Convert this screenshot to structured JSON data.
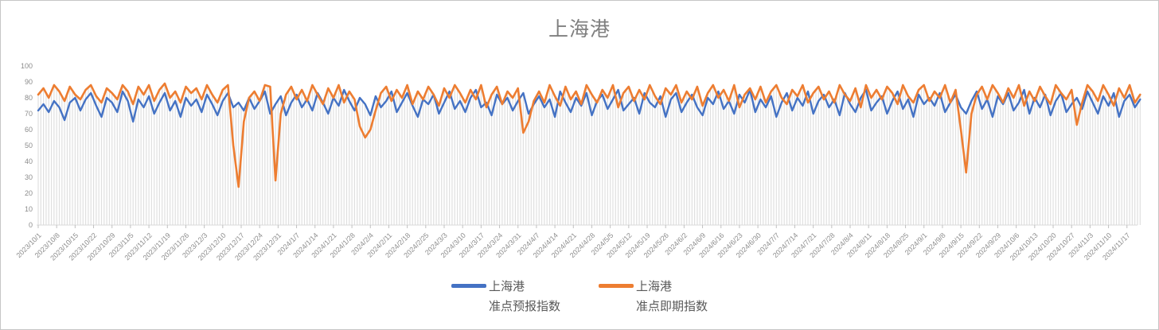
{
  "window": {
    "background": "#ffffff",
    "border_color": "#c6c6c6"
  },
  "chart_data": {
    "type": "line",
    "title": "上海港",
    "legend_position": "bottom",
    "x_axis": {
      "start_date": "2023/10/1",
      "sample_interval_days": 2,
      "label_rotation_deg": 45,
      "tick_labels": [
        "2023/10/1",
        "2023/10/8",
        "2023/10/15",
        "2023/10/22",
        "2023/10/29",
        "2023/11/5",
        "2023/11/12",
        "2023/11/19",
        "2023/11/26",
        "2023/12/3",
        "2023/12/10",
        "2023/12/17",
        "2023/12/24",
        "2023/12/31",
        "2024/1/7",
        "2024/1/14",
        "2024/1/21",
        "2024/1/28",
        "2024/2/4",
        "2024/2/11",
        "2024/2/18",
        "2024/2/25",
        "2024/3/3",
        "2024/3/10",
        "2024/3/17",
        "2024/3/24",
        "2024/3/31",
        "2024/4/7",
        "2024/4/14",
        "2024/4/21",
        "2024/4/28",
        "2024/5/5",
        "2024/5/12",
        "2024/5/19",
        "2024/5/26",
        "2024/6/2",
        "2024/6/9",
        "2024/6/16",
        "2024/6/23",
        "2024/6/30",
        "2024/7/7",
        "2024/7/14",
        "2024/7/21",
        "2024/7/28",
        "2024/8/4",
        "2024/8/11",
        "2024/8/18",
        "2024/8/25",
        "2024/9/1",
        "2024/9/8",
        "2024/9/15",
        "2024/9/22",
        "2024/9/29",
        "2024/10/6",
        "2024/10/13",
        "2024/10/20",
        "2024/10/27",
        "2024/11/3",
        "2024/11/10",
        "2024/11/17"
      ]
    },
    "y_axis": {
      "min": 0,
      "max": 100,
      "tick_step": 10,
      "tick_labels": [
        "0",
        "10",
        "20",
        "30",
        "40",
        "50",
        "60",
        "70",
        "80",
        "90",
        "100"
      ]
    },
    "grid": {
      "vertical_drop_lines": true,
      "horizontal_gridlines": false
    },
    "colors": {
      "drop_line": "#e0e0e0",
      "axis_line": "#d9d9d9",
      "tick_mark": "#c0c0c0",
      "axis_text": "#8c8c8c",
      "title_text": "#7f7f7f",
      "legend_text": "#595959"
    },
    "series": [
      {
        "name": "上海港 准点预报指数",
        "name_lines": [
          "上海港",
          "准点预报指数"
        ],
        "color": "#4472C4",
        "values": [
          72,
          76,
          71,
          78,
          74,
          66,
          77,
          80,
          72,
          79,
          83,
          75,
          68,
          80,
          77,
          71,
          84,
          78,
          65,
          79,
          74,
          81,
          70,
          77,
          83,
          72,
          78,
          68,
          80,
          75,
          79,
          71,
          82,
          76,
          69,
          78,
          83,
          74,
          77,
          72,
          80,
          73,
          78,
          84,
          70,
          76,
          81,
          69,
          77,
          82,
          74,
          79,
          72,
          83,
          77,
          70,
          80,
          75,
          85,
          78,
          72,
          80,
          76,
          69,
          81,
          74,
          78,
          84,
          71,
          77,
          83,
          75,
          68,
          79,
          76,
          82,
          70,
          77,
          84,
          73,
          78,
          71,
          80,
          85,
          74,
          77,
          69,
          82,
          76,
          80,
          72,
          78,
          83,
          70,
          76,
          81,
          74,
          79,
          68,
          84,
          77,
          71,
          80,
          75,
          83,
          69,
          78,
          82,
          73,
          79,
          85,
          72,
          76,
          80,
          70,
          83,
          77,
          74,
          81,
          68,
          79,
          83,
          71,
          77,
          82,
          74,
          69,
          80,
          76,
          84,
          73,
          78,
          70,
          82,
          77,
          85,
          71,
          79,
          74,
          81,
          68,
          77,
          83,
          72,
          80,
          75,
          84,
          70,
          78,
          82,
          74,
          79,
          69,
          83,
          76,
          71,
          80,
          85,
          72,
          77,
          81,
          70,
          78,
          84,
          73,
          79,
          68,
          82,
          76,
          80,
          75,
          83,
          71,
          77,
          82,
          74,
          70,
          78,
          84,
          73,
          79,
          68,
          81,
          76,
          83,
          72,
          77,
          85,
          70,
          80,
          74,
          82,
          69,
          78,
          83,
          71,
          76,
          80,
          73,
          84,
          77,
          70,
          81,
          75,
          83,
          68,
          78,
          82,
          74,
          79
        ]
      },
      {
        "name": "上海港 准点即期指数",
        "name_lines": [
          "上海港",
          "准点即期指数"
        ],
        "color": "#ED7D31",
        "values": [
          82,
          86,
          80,
          88,
          84,
          78,
          87,
          82,
          79,
          85,
          88,
          81,
          77,
          86,
          83,
          79,
          88,
          84,
          76,
          87,
          82,
          88,
          78,
          85,
          89,
          80,
          84,
          77,
          87,
          83,
          86,
          79,
          88,
          82,
          77,
          85,
          88,
          50,
          24,
          65,
          80,
          84,
          78,
          88,
          87,
          28,
          70,
          82,
          87,
          79,
          85,
          78,
          88,
          82,
          76,
          86,
          80,
          88,
          77,
          84,
          79,
          62,
          55,
          60,
          72,
          83,
          87,
          78,
          85,
          80,
          88,
          76,
          84,
          79,
          87,
          82,
          75,
          86,
          80,
          88,
          83,
          77,
          85,
          79,
          88,
          74,
          82,
          87,
          76,
          84,
          80,
          86,
          58,
          65,
          78,
          84,
          77,
          88,
          81,
          75,
          87,
          79,
          84,
          76,
          88,
          82,
          77,
          85,
          80,
          88,
          74,
          83,
          87,
          78,
          85,
          79,
          88,
          81,
          76,
          86,
          82,
          88,
          77,
          84,
          79,
          87,
          75,
          83,
          88,
          80,
          85,
          78,
          88,
          74,
          82,
          86,
          79,
          87,
          77,
          84,
          88,
          80,
          76,
          85,
          81,
          88,
          77,
          83,
          87,
          79,
          84,
          77,
          88,
          82,
          78,
          86,
          74,
          88,
          80,
          85,
          79,
          87,
          83,
          76,
          88,
          81,
          77,
          85,
          88,
          78,
          84,
          80,
          88,
          77,
          85,
          60,
          33,
          70,
          82,
          87,
          79,
          88,
          83,
          77,
          86,
          80,
          88,
          75,
          84,
          78,
          87,
          81,
          76,
          88,
          83,
          79,
          85,
          63,
          77,
          88,
          84,
          78,
          88,
          82,
          75,
          86,
          80,
          88,
          77,
          82
        ]
      }
    ]
  }
}
